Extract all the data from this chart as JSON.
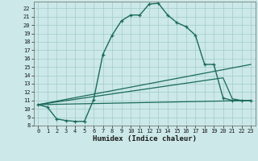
{
  "bg_color": "#cce8e8",
  "grid_color": "#a0cccc",
  "line_color": "#1a6b5a",
  "xlabel": "Humidex (Indice chaleur)",
  "xlim": [
    -0.5,
    23.5
  ],
  "ylim": [
    8,
    22.8
  ],
  "xticks": [
    0,
    1,
    2,
    3,
    4,
    5,
    6,
    7,
    8,
    9,
    10,
    11,
    12,
    13,
    14,
    15,
    16,
    17,
    18,
    19,
    20,
    21,
    22,
    23
  ],
  "yticks": [
    8,
    9,
    10,
    11,
    12,
    13,
    14,
    15,
    16,
    17,
    18,
    19,
    20,
    21,
    22
  ],
  "curve1_x": [
    0,
    1,
    2,
    3,
    4,
    5,
    6,
    7,
    8,
    9,
    10,
    11,
    12,
    13,
    14,
    15,
    16,
    17,
    18,
    19,
    20,
    21,
    22,
    23
  ],
  "curve1_y": [
    10.5,
    10.2,
    8.8,
    8.6,
    8.5,
    8.5,
    11.1,
    16.5,
    18.8,
    20.5,
    21.2,
    21.2,
    22.5,
    22.6,
    21.2,
    20.3,
    19.8,
    18.8,
    15.3,
    15.3,
    11.3,
    11.0,
    11.0,
    11.0
  ],
  "line2_x": [
    0,
    23
  ],
  "line2_y": [
    10.5,
    15.3
  ],
  "line3_x": [
    0,
    20,
    21,
    22,
    23
  ],
  "line3_y": [
    10.5,
    13.7,
    11.2,
    11.0,
    11.0
  ],
  "line4_x": [
    0,
    23
  ],
  "line4_y": [
    10.5,
    11.0
  ]
}
